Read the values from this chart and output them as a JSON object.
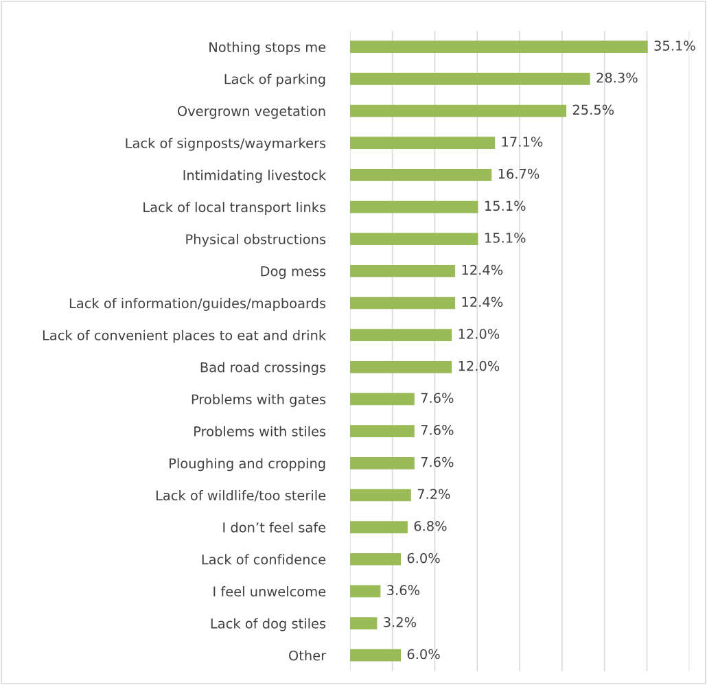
{
  "chart_data": {
    "type": "bar",
    "orientation": "horizontal",
    "categories": [
      "Nothing stops me",
      "Lack of parking",
      "Overgrown vegetation",
      "Lack of signposts/waymarkers",
      "Intimidating livestock",
      "Lack of local transport links",
      "Physical obstructions",
      "Dog mess",
      "Lack of information/guides/mapboards",
      "Lack of convenient places to eat and drink",
      "Bad road crossings",
      "Problems with gates",
      "Problems with stiles",
      "Ploughing and cropping",
      "Lack of wildlife/too sterile",
      "I don’t feel safe",
      "Lack of confidence",
      "I feel unwelcome",
      "Lack of dog stiles",
      "Other"
    ],
    "values": [
      35.1,
      28.3,
      25.5,
      17.1,
      16.7,
      15.1,
      15.1,
      12.4,
      12.4,
      12.0,
      12.0,
      7.6,
      7.6,
      7.6,
      7.2,
      6.8,
      6.0,
      3.6,
      3.2,
      6.0
    ],
    "value_labels": [
      "35.1%",
      "28.3%",
      "25.5%",
      "17.1%",
      "16.7%",
      "15.1%",
      "15.1%",
      "12.4%",
      "12.4%",
      "12.0%",
      "12.0%",
      "7.6%",
      "7.6%",
      "7.6%",
      "7.2%",
      "6.8%",
      "6.0%",
      "3.6%",
      "3.2%",
      "6.0%"
    ],
    "color": "#9bbb59",
    "xlim": [
      0,
      40
    ],
    "xticks": [
      {
        "value": 0,
        "label": null
      },
      {
        "value": 5,
        "label": null
      },
      {
        "value": 10,
        "label": null
      },
      {
        "value": 15,
        "label": null
      },
      {
        "value": 20,
        "label": null
      },
      {
        "value": 25,
        "label": null
      },
      {
        "value": 30,
        "label": null
      },
      {
        "value": 35,
        "label": null
      },
      {
        "value": 40,
        "label": null
      }
    ],
    "grid": "x",
    "tick_labels": "y",
    "legend": false
  }
}
